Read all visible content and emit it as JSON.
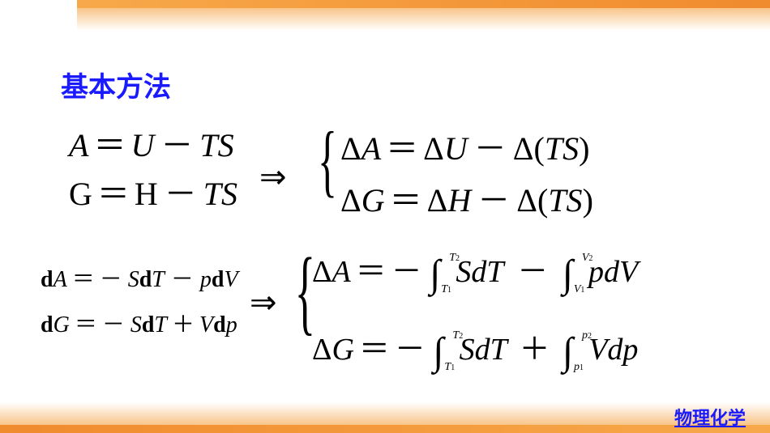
{
  "colors": {
    "title": "#1a1aff",
    "footer": "#1a1aff",
    "text": "#000000",
    "accent_orange_dark": "#f08b2e",
    "accent_orange_light": "#f8c589"
  },
  "title": "基本方法",
  "footer": "物理化学",
  "block1": {
    "left": {
      "line1": {
        "lhs": "A",
        "eq": "＝",
        "r1": "U",
        "minus": "－",
        "r2": "TS"
      },
      "line2": {
        "lhs": "G",
        "eq": "＝",
        "r1": "H",
        "minus": "－",
        "r2": "TS"
      }
    },
    "arrow": "⇒",
    "brace": "{",
    "right": {
      "line1": {
        "delta1": "Δ",
        "v1": "A",
        "eq": "＝",
        "delta2": "Δ",
        "v2": "U",
        "minus": "－",
        "delta3": "Δ",
        "p": "(",
        "v3": "TS",
        "cp": ")"
      },
      "line2": {
        "delta1": "Δ",
        "v1": "G",
        "eq": "＝",
        "delta2": "Δ",
        "v2": "H",
        "minus": "－",
        "delta3": "Δ",
        "p": "(",
        "v3": "TS",
        "cp": ")"
      }
    }
  },
  "block2": {
    "left": {
      "line1": {
        "d1": "d",
        "v1": "A",
        "eq": "＝",
        "neg": "－",
        "c1": "S",
        "d2": "d",
        "v2": "T",
        "op": "－",
        "c2": "p",
        "d3": "d",
        "v3": "V"
      },
      "line2": {
        "d1": "d",
        "v1": "G",
        "eq": "＝",
        "neg": "－",
        "c1": "S",
        "d2": "d",
        "v2": "T",
        "op": "＋",
        "c2": "V",
        "d3": "d",
        "v3": "p"
      }
    },
    "arrow": "⇒",
    "brace": "{",
    "right": {
      "lineA": {
        "delta": "Δ",
        "lhs": "A",
        "eq": "＝",
        "neg": "－",
        "int1": {
          "sym": "∫",
          "lb": "T",
          "lbn": "1",
          "ub": "T",
          "ubn": "2"
        },
        "term1a": "S",
        "term1b": "dT",
        "op": "－",
        "int2": {
          "sym": "∫",
          "lb": "V",
          "lbn": "1",
          "ub": "V",
          "ubn": "2"
        },
        "term2a": "p",
        "term2b": "dV"
      },
      "lineG": {
        "delta": "Δ",
        "lhs": "G",
        "eq": "＝",
        "neg": "－",
        "int1": {
          "sym": "∫",
          "lb": "T",
          "lbn": "1",
          "ub": "T",
          "ubn": "2"
        },
        "term1a": "S",
        "term1b": "dT",
        "op": "＋",
        "int2": {
          "sym": "∫",
          "lb": "p",
          "lbn": "1",
          "ub": "p",
          "ubn": "2"
        },
        "term2a": "V",
        "term2b": "dp"
      }
    }
  }
}
